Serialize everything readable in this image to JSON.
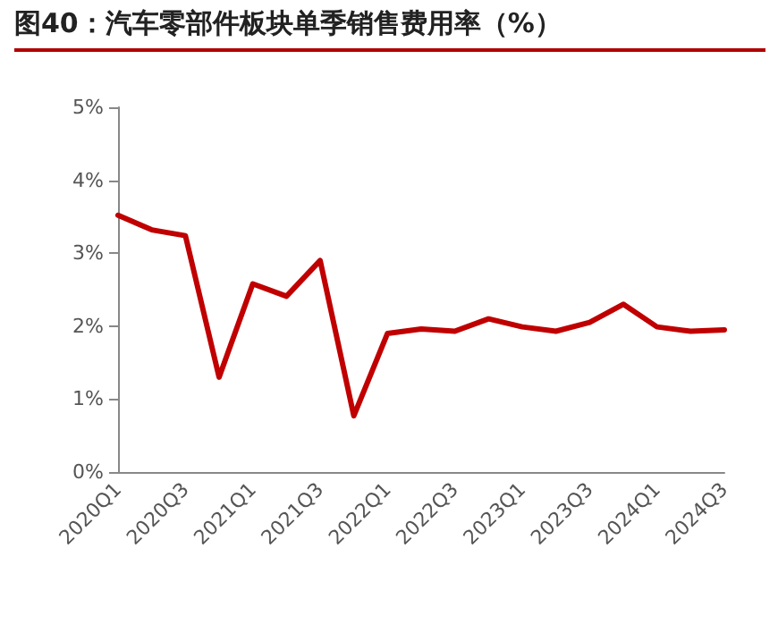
{
  "chart_data": {
    "type": "line",
    "title": "图40：汽车零部件板块单季销售费用率（%）",
    "categories": [
      "2020Q1",
      null,
      "2020Q3",
      null,
      "2021Q1",
      null,
      "2021Q3",
      null,
      "2022Q1",
      null,
      "2022Q3",
      null,
      "2023Q1",
      null,
      "2023Q3",
      null,
      "2024Q1",
      null,
      "2024Q3"
    ],
    "series": [
      {
        "color": "#c00000",
        "values": [
          3.52,
          3.32,
          3.24,
          1.3,
          2.58,
          2.41,
          2.9,
          0.77,
          1.9,
          1.96,
          1.93,
          2.1,
          1.99,
          1.93,
          2.05,
          2.3,
          1.99,
          1.93,
          1.95
        ]
      }
    ],
    "ylim": [
      0,
      5
    ],
    "yticks": [
      {
        "value": 0,
        "label": "0%"
      },
      {
        "value": 1,
        "label": "1%"
      },
      {
        "value": 2,
        "label": "2%"
      },
      {
        "value": 3,
        "label": "3%"
      },
      {
        "value": 4,
        "label": "4%"
      },
      {
        "value": 5,
        "label": "5%"
      }
    ],
    "grid": false,
    "marker": "none",
    "line_style": "solid"
  }
}
